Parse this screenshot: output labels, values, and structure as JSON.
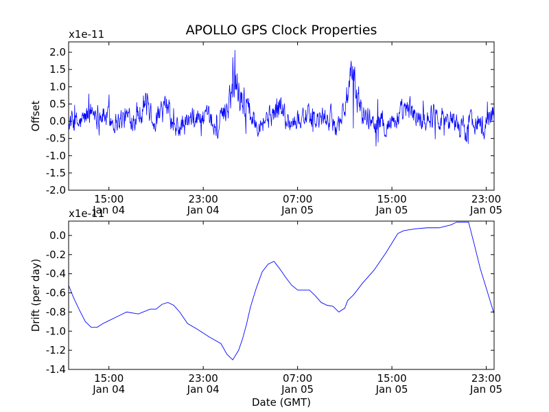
{
  "chart_data": [
    {
      "type": "line",
      "title": "APOLLO GPS Clock Properties",
      "xlabel": "",
      "ylabel": "Offset",
      "y_multiplier_label": "x1e-11",
      "ylim": [
        -2.0,
        2.3
      ],
      "yticks": [
        -2.0,
        -1.5,
        -1.0,
        -0.5,
        0.0,
        0.5,
        1.0,
        1.5,
        2.0
      ],
      "ytick_labels": [
        "-2.0",
        "-1.5",
        "-1.0",
        "-0.5",
        "0.0",
        "0.5",
        "1.0",
        "1.5",
        "2.0"
      ],
      "xlim": [
        "2013-01-04 11:35",
        "2013-01-05 23:40"
      ],
      "xticks": [
        "2013-01-04 15:00",
        "2013-01-04 23:00",
        "2013-01-05 07:00",
        "2013-01-05 15:00",
        "2013-01-05 23:00"
      ],
      "xtick_labels": [
        [
          "15:00",
          "Jan 04"
        ],
        [
          "23:00",
          "Jan 04"
        ],
        [
          "07:00",
          "Jan 05"
        ],
        [
          "15:00",
          "Jan 05"
        ],
        [
          "23:00",
          "Jan 05"
        ]
      ],
      "grid": false,
      "color": "#0000ff",
      "noise_amplitude": 0.25,
      "series": [
        {
          "x": [
            "2013-01-04 11:35",
            "2013-01-04 12:30",
            "2013-01-04 13:30",
            "2013-01-04 14:30",
            "2013-01-04 15:30",
            "2013-01-04 16:30",
            "2013-01-04 17:30",
            "2013-01-04 18:00",
            "2013-01-04 19:00",
            "2013-01-04 20:00",
            "2013-01-04 20:30",
            "2013-01-04 21:30",
            "2013-01-04 22:30",
            "2013-01-04 23:30",
            "2013-01-05 00:15",
            "2013-01-05 01:00",
            "2013-01-05 01:40",
            "2013-01-05 02:30",
            "2013-01-05 03:30",
            "2013-01-05 04:30",
            "2013-01-05 05:30",
            "2013-01-05 06:30",
            "2013-01-05 07:30",
            "2013-01-05 08:30",
            "2013-01-05 09:30",
            "2013-01-05 10:30",
            "2013-01-05 11:00",
            "2013-01-05 11:40",
            "2013-01-05 12:30",
            "2013-01-05 13:30",
            "2013-01-05 14:30",
            "2013-01-05 15:30",
            "2013-01-05 16:30",
            "2013-01-05 17:30",
            "2013-01-05 18:30",
            "2013-01-05 19:30",
            "2013-01-05 20:30",
            "2013-01-05 21:00",
            "2013-01-05 22:00",
            "2013-01-05 22:45",
            "2013-01-05 23:40"
          ],
          "y": [
            0.0,
            -0.1,
            0.3,
            0.2,
            0.0,
            0.1,
            0.2,
            0.6,
            0.0,
            0.4,
            -0.3,
            -0.1,
            0.1,
            0.0,
            -0.2,
            0.4,
            1.3,
            0.5,
            0.0,
            0.1,
            0.4,
            -0.1,
            0.2,
            0.0,
            0.1,
            -0.1,
            0.5,
            1.2,
            0.2,
            0.0,
            -0.1,
            0.1,
            0.3,
            0.0,
            0.2,
            0.1,
            0.0,
            -0.3,
            0.1,
            -0.2,
            0.3
          ]
        }
      ]
    },
    {
      "type": "line",
      "title": "",
      "xlabel": "Date (GMT)",
      "ylabel": "Drift (per day)",
      "y_multiplier_label": "x1e-11",
      "ylim": [
        -1.4,
        0.15
      ],
      "yticks": [
        -1.4,
        -1.2,
        -1.0,
        -0.8,
        -0.6,
        -0.4,
        -0.2,
        0.0
      ],
      "ytick_labels": [
        "-1.4",
        "-1.2",
        "-1.0",
        "-0.8",
        "-0.6",
        "-0.4",
        "-0.2",
        "0.0"
      ],
      "xlim": [
        "2013-01-04 11:35",
        "2013-01-05 23:40"
      ],
      "xticks": [
        "2013-01-04 15:00",
        "2013-01-04 23:00",
        "2013-01-05 07:00",
        "2013-01-05 15:00",
        "2013-01-05 23:00"
      ],
      "xtick_labels": [
        [
          "15:00",
          "Jan 04"
        ],
        [
          "23:00",
          "Jan 04"
        ],
        [
          "07:00",
          "Jan 05"
        ],
        [
          "15:00",
          "Jan 05"
        ],
        [
          "23:00",
          "Jan 05"
        ]
      ],
      "grid": false,
      "color": "#0000ff",
      "series": [
        {
          "x": [
            "2013-01-04 11:35",
            "2013-01-04 12:00",
            "2013-01-04 12:30",
            "2013-01-04 13:00",
            "2013-01-04 13:30",
            "2013-01-04 14:00",
            "2013-01-04 14:30",
            "2013-01-04 15:00",
            "2013-01-04 15:30",
            "2013-01-04 16:30",
            "2013-01-04 17:30",
            "2013-01-04 18:30",
            "2013-01-04 19:00",
            "2013-01-04 19:30",
            "2013-01-04 20:00",
            "2013-01-04 20:30",
            "2013-01-04 21:00",
            "2013-01-04 21:20",
            "2013-01-04 21:40",
            "2013-01-04 22:30",
            "2013-01-04 23:30",
            "2013-01-05 00:30",
            "2013-01-05 01:00",
            "2013-01-05 01:30",
            "2013-01-05 02:00",
            "2013-01-05 02:20",
            "2013-01-05 02:40",
            "2013-01-05 03:00",
            "2013-01-05 03:30",
            "2013-01-05 04:00",
            "2013-01-05 04:30",
            "2013-01-05 05:00",
            "2013-01-05 05:30",
            "2013-01-05 06:00",
            "2013-01-05 06:30",
            "2013-01-05 07:00",
            "2013-01-05 07:30",
            "2013-01-05 08:00",
            "2013-01-05 08:30",
            "2013-01-05 09:00",
            "2013-01-05 09:30",
            "2013-01-05 10:00",
            "2013-01-05 10:30",
            "2013-01-05 11:00",
            "2013-01-05 11:15",
            "2013-01-05 11:45",
            "2013-01-05 12:30",
            "2013-01-05 13:30",
            "2013-01-05 14:30",
            "2013-01-05 15:30",
            "2013-01-05 16:00",
            "2013-01-05 17:00",
            "2013-01-05 18:00",
            "2013-01-05 19:00",
            "2013-01-05 20:00",
            "2013-01-05 20:30",
            "2013-01-05 21:00",
            "2013-01-05 21:30",
            "2013-01-05 22:00",
            "2013-01-05 22:30",
            "2013-01-05 23:00",
            "2013-01-05 23:40"
          ],
          "y": [
            -0.52,
            -0.65,
            -0.78,
            -0.9,
            -0.96,
            -0.96,
            -0.92,
            -0.89,
            -0.86,
            -0.8,
            -0.82,
            -0.77,
            -0.77,
            -0.72,
            -0.7,
            -0.73,
            -0.8,
            -0.86,
            -0.92,
            -0.98,
            -1.06,
            -1.13,
            -1.24,
            -1.3,
            -1.2,
            -1.08,
            -0.93,
            -0.75,
            -0.55,
            -0.38,
            -0.3,
            -0.27,
            -0.35,
            -0.44,
            -0.52,
            -0.57,
            -0.57,
            -0.57,
            -0.63,
            -0.7,
            -0.73,
            -0.74,
            -0.8,
            -0.76,
            -0.68,
            -0.62,
            -0.5,
            -0.36,
            -0.18,
            0.02,
            0.05,
            0.07,
            0.08,
            0.08,
            0.11,
            0.14,
            0.14,
            0.14,
            -0.1,
            -0.35,
            -0.55,
            -0.82
          ]
        }
      ]
    }
  ]
}
